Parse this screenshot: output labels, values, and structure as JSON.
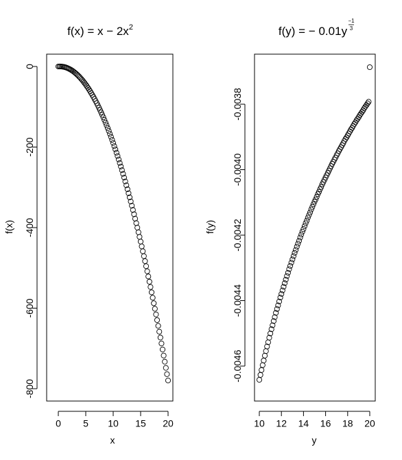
{
  "chart_data": [
    {
      "type": "scatter",
      "title": "f(x) = x − 2x",
      "title_superscript": "2",
      "xlabel": "x",
      "ylabel": "f(x)",
      "xlim": [
        0,
        20
      ],
      "ylim": [
        -780,
        0
      ],
      "x_ticks": [
        0,
        5,
        10,
        15,
        20
      ],
      "y_ticks": [
        0,
        -200,
        -400,
        -600,
        -800
      ],
      "x_tick_labels": [
        "0",
        "5",
        "10",
        "15",
        "20"
      ],
      "y_tick_labels": [
        "0",
        "-200",
        "-400",
        "-600",
        "-800"
      ],
      "grid": false,
      "marker": "open-circle",
      "x": [
        0,
        0.2,
        0.4,
        0.6,
        0.8,
        1,
        1.2,
        1.4,
        1.6,
        1.8,
        2,
        2.2,
        2.4,
        2.6,
        2.8,
        3,
        3.2,
        3.4,
        3.6,
        3.8,
        4,
        4.2,
        4.4,
        4.6,
        4.8,
        5,
        5.2,
        5.4,
        5.6,
        5.8,
        6,
        6.2,
        6.4,
        6.6,
        6.8,
        7,
        7.2,
        7.4,
        7.6,
        7.8,
        8,
        8.2,
        8.4,
        8.6,
        8.8,
        9,
        9.2,
        9.4,
        9.6,
        9.8,
        10,
        10.2,
        10.4,
        10.6,
        10.8,
        11,
        11.2,
        11.4,
        11.6,
        11.8,
        12,
        12.2,
        12.4,
        12.6,
        12.8,
        13,
        13.2,
        13.4,
        13.6,
        13.8,
        14,
        14.2,
        14.4,
        14.6,
        14.8,
        15,
        15.2,
        15.4,
        15.6,
        15.8,
        16,
        16.2,
        16.4,
        16.6,
        16.8,
        17,
        17.2,
        17.4,
        17.6,
        17.8,
        18,
        18.2,
        18.4,
        18.6,
        18.8,
        19,
        19.2,
        19.4,
        19.6,
        19.8,
        20
      ],
      "y": [
        0,
        0.12,
        0.08,
        -0.12,
        -0.48,
        -1,
        -1.68,
        -2.52,
        -3.52,
        -4.68,
        -6,
        -7.48,
        -9.12,
        -10.92,
        -12.88,
        -15,
        -17.28,
        -19.72,
        -22.32,
        -25.08,
        -28,
        -31.08,
        -34.32,
        -37.72,
        -41.28,
        -45,
        -48.88,
        -52.92,
        -57.12,
        -61.48,
        -66,
        -70.68,
        -75.52,
        -80.52,
        -85.68,
        -91,
        -96.48,
        -102.12,
        -107.92,
        -113.88,
        -120,
        -126.28,
        -132.72,
        -139.32,
        -146.08,
        -153,
        -160.08,
        -167.32,
        -174.72,
        -182.28,
        -190,
        -197.88,
        -205.92,
        -214.12,
        -222.48,
        -231,
        -239.68,
        -248.52,
        -257.52,
        -266.68,
        -276,
        -285.48,
        -295.12,
        -304.92,
        -314.88,
        -325,
        -335.28,
        -345.72,
        -356.32,
        -367.08,
        -378,
        -389.08,
        -400.32,
        -411.72,
        -423.28,
        -435,
        -446.88,
        -458.92,
        -471.12,
        -483.48,
        -496,
        -508.68,
        -521.52,
        -534.52,
        -547.68,
        -561,
        -574.48,
        -588.12,
        -601.92,
        -615.88,
        -630,
        -644.28,
        -658.72,
        -673.32,
        -688.08,
        -703,
        -718.08,
        -733.32,
        -748.72,
        -764.28,
        -780
      ]
    },
    {
      "type": "scatter",
      "title": "f(y) = − 0.01y",
      "title_superscript_numerator": "−1",
      "title_superscript_denominator": "3",
      "xlabel": "y",
      "ylabel": "f(y)",
      "xlim": [
        10,
        20
      ],
      "ylim": [
        -0.004642,
        -0.003684
      ],
      "x_ticks": [
        10,
        12,
        14,
        16,
        18,
        20
      ],
      "y_ticks": [
        -0.0038,
        -0.004,
        -0.0042,
        -0.0044,
        -0.0046
      ],
      "x_tick_labels": [
        "10",
        "12",
        "14",
        "16",
        "18",
        "20"
      ],
      "y_tick_labels": [
        "-0.0038",
        "-0.0040",
        "-0.0042",
        "-0.0044",
        "-0.0046"
      ],
      "grid": false,
      "marker": "open-circle",
      "x": [
        10,
        10.1,
        10.2,
        10.3,
        10.4,
        10.5,
        10.6,
        10.7,
        10.8,
        10.9,
        11,
        11.1,
        11.2,
        11.3,
        11.4,
        11.5,
        11.6,
        11.7,
        11.8,
        11.9,
        12,
        12.1,
        12.2,
        12.3,
        12.4,
        12.5,
        12.6,
        12.7,
        12.8,
        12.9,
        13,
        13.1,
        13.2,
        13.3,
        13.4,
        13.5,
        13.6,
        13.7,
        13.8,
        13.9,
        14,
        14.1,
        14.2,
        14.3,
        14.4,
        14.5,
        14.6,
        14.7,
        14.8,
        14.9,
        15,
        15.1,
        15.2,
        15.3,
        15.4,
        15.5,
        15.6,
        15.7,
        15.8,
        15.9,
        16,
        16.1,
        16.2,
        16.3,
        16.4,
        16.5,
        16.6,
        16.7,
        16.8,
        16.9,
        17,
        17.1,
        17.2,
        17.3,
        17.4,
        17.5,
        17.6,
        17.7,
        17.8,
        17.9,
        18,
        18.1,
        18.2,
        18.3,
        18.4,
        18.5,
        18.6,
        18.7,
        18.8,
        18.9,
        19,
        19.1,
        19.2,
        19.3,
        19.4,
        19.5,
        19.6,
        19.7,
        19.8,
        19.9,
        20
      ],
      "y": [
        -0.004642,
        -0.004627,
        -0.004612,
        -0.004597,
        -0.004583,
        -0.004568,
        -0.004554,
        -0.00454,
        -0.004527,
        -0.004513,
        -0.0045,
        -0.004487,
        -0.004475,
        -0.004462,
        -0.00445,
        -0.004437,
        -0.004425,
        -0.004414,
        -0.004402,
        -0.00439,
        -0.004379,
        -0.004368,
        -0.004357,
        -0.004346,
        -0.004335,
        -0.004324,
        -0.004314,
        -0.004303,
        -0.004293,
        -0.004283,
        -0.004273,
        -0.004263,
        -0.004253,
        -0.004244,
        -0.004234,
        -0.004225,
        -0.004216,
        -0.004206,
        -0.004197,
        -0.004188,
        -0.00418,
        -0.004171,
        -0.004162,
        -0.004154,
        -0.004145,
        -0.004137,
        -0.004129,
        -0.00412,
        -0.004112,
        -0.004104,
        -0.004096,
        -0.004089,
        -0.004081,
        -0.004073,
        -0.004066,
        -0.004058,
        -0.004051,
        -0.004043,
        -0.004036,
        -0.004029,
        -0.004022,
        -0.004015,
        -0.004008,
        -0.004001,
        -0.003994,
        -0.003987,
        -0.00398,
        -0.003974,
        -0.003967,
        -0.003961,
        -0.003954,
        -0.003948,
        -0.003941,
        -0.003935,
        -0.003929,
        -0.003923,
        -0.003917,
        -0.00391,
        -0.003904,
        -0.003899,
        -0.003893,
        -0.003887,
        -0.003881,
        -0.003875,
        -0.00387,
        -0.003864,
        -0.003858,
        -0.003853,
        -0.003847,
        -0.003842,
        -0.003837,
        -0.003831,
        -0.003826,
        -0.003821,
        -0.003816,
        -0.00381,
        -0.003805,
        -0.0038,
        -0.003795,
        -0.00379,
        -0.003684
      ]
    }
  ]
}
